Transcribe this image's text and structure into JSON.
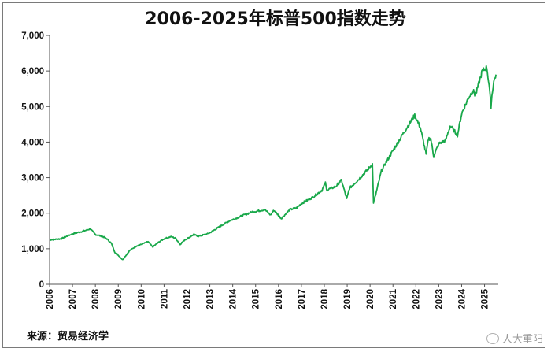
{
  "chart_data": {
    "type": "line",
    "title": "2006-2025年标普500指数走势",
    "xlabel": "",
    "ylabel": "",
    "ylim": [
      0,
      7000
    ],
    "yticks": [
      "0",
      "1,000",
      "2,000",
      "3,000",
      "4,000",
      "5,000",
      "6,000",
      "7,000"
    ],
    "xticks": [
      "2006",
      "2007",
      "2008",
      "2009",
      "2010",
      "2011",
      "2012",
      "2013",
      "2014",
      "2015",
      "2016",
      "2017",
      "2018",
      "2019",
      "2020",
      "2021",
      "2022",
      "2023",
      "2024",
      "2025"
    ],
    "grid": false,
    "legend": "none",
    "line_color": "#19a84a",
    "series": [
      {
        "x": [
          2006.0,
          2006.5,
          2007.0,
          2007.5,
          2007.78,
          2008.0,
          2008.3,
          2008.5,
          2008.7,
          2008.85,
          2008.95,
          2009.1,
          2009.19,
          2009.5,
          2009.8,
          2010.0,
          2010.3,
          2010.5,
          2010.8,
          2011.0,
          2011.3,
          2011.5,
          2011.7,
          2011.9,
          2012.0,
          2012.3,
          2012.5,
          2012.9,
          2013.0,
          2013.5,
          2013.9,
          2014.0,
          2014.5,
          2014.9,
          2015.0,
          2015.4,
          2015.65,
          2015.8,
          2016.0,
          2016.12,
          2016.5,
          2016.8,
          2017.0,
          2017.5,
          2017.9,
          2018.05,
          2018.1,
          2018.5,
          2018.75,
          2018.98,
          2019.1,
          2019.5,
          2019.9,
          2020.1,
          2020.15,
          2020.22,
          2020.5,
          2020.9,
          2021.0,
          2021.5,
          2021.95,
          2022.2,
          2022.45,
          2022.55,
          2022.65,
          2022.78,
          2023.0,
          2023.3,
          2023.5,
          2023.82,
          2024.0,
          2024.3,
          2024.5,
          2024.6,
          2024.9,
          2025.1,
          2025.2,
          2025.28,
          2025.32,
          2025.4,
          2025.5
        ],
        "y": [
          1250,
          1280,
          1420,
          1500,
          1560,
          1400,
          1350,
          1280,
          1150,
          900,
          850,
          750,
          690,
          950,
          1080,
          1120,
          1200,
          1050,
          1200,
          1280,
          1340,
          1300,
          1120,
          1250,
          1280,
          1400,
          1350,
          1420,
          1450,
          1650,
          1800,
          1820,
          1950,
          2050,
          2050,
          2100,
          1950,
          2080,
          1940,
          1850,
          2100,
          2150,
          2270,
          2450,
          2650,
          2850,
          2650,
          2750,
          2930,
          2400,
          2700,
          2950,
          3230,
          3380,
          2300,
          2450,
          3200,
          3650,
          3760,
          4300,
          4750,
          4400,
          3650,
          4100,
          4100,
          3600,
          3950,
          4050,
          4450,
          4200,
          4800,
          5250,
          5450,
          5300,
          6000,
          6100,
          5600,
          5000,
          5300,
          5700,
          5900
        ]
      }
    ],
    "source": "来源：贸易经济学",
    "watermark": "人大重阳"
  }
}
